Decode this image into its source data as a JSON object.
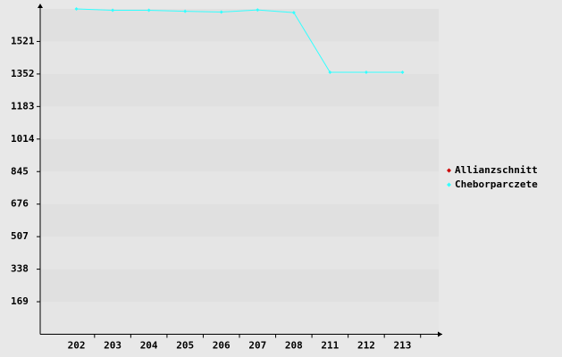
{
  "chart_data": {
    "type": "line",
    "categories": [
      "202",
      "203",
      "204",
      "205",
      "206",
      "207",
      "208",
      "211",
      "212",
      "213"
    ],
    "series": [
      {
        "name": "Allianzschnitt",
        "color": "#cc0000",
        "values": [
          null,
          null,
          null,
          null,
          null,
          null,
          null,
          null,
          null,
          null
        ]
      },
      {
        "name": "Cheborparczete",
        "color": "#33ffff",
        "values": [
          1690,
          1683,
          1683,
          1678,
          1674,
          1685,
          1671,
          1361,
          1361,
          1361
        ]
      }
    ],
    "ylim": [
      0,
      1690
    ],
    "yticks": [
      169,
      338,
      507,
      676,
      845,
      1014,
      1183,
      1352,
      1521
    ],
    "grid": true,
    "legend": "right"
  }
}
